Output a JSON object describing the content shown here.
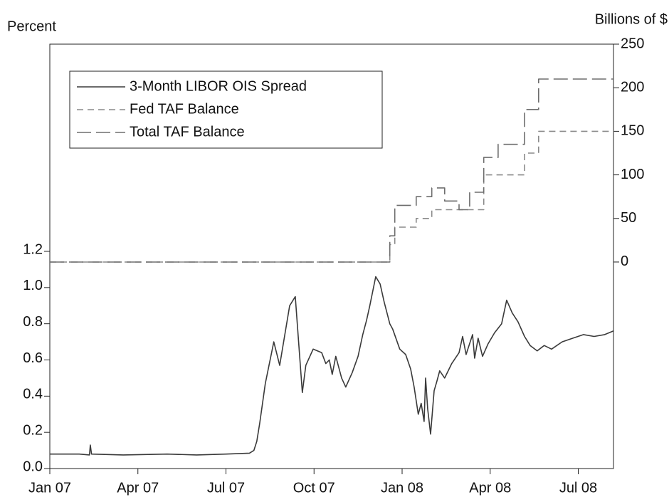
{
  "chart_data": {
    "type": "line",
    "y_label": "Percent",
    "y2_label": "Billions of $",
    "xlim": [
      0,
      19.2
    ],
    "xticks": [
      {
        "value": 0,
        "label": "Jan 07"
      },
      {
        "value": 3,
        "label": "Apr 07"
      },
      {
        "value": 6,
        "label": "Jul 07"
      },
      {
        "value": 9,
        "label": "Oct 07"
      },
      {
        "value": 12,
        "label": "Jan 08"
      },
      {
        "value": 15,
        "label": "Apr 08"
      },
      {
        "value": 18,
        "label": "Jul 08"
      }
    ],
    "ylim": [
      0,
      2.345
    ],
    "yticks": [
      {
        "value": 0,
        "label": "0.0"
      },
      0.2,
      0.4,
      0.6,
      0.8,
      {
        "value": 1,
        "label": "1.0"
      },
      1.2
    ],
    "y2lim": [
      -237,
      250
    ],
    "y2ticks": [
      0,
      50,
      100,
      150,
      200,
      250
    ],
    "legend": "top-left",
    "series": [
      {
        "name": "3-Month LIBOR OIS Spread",
        "color": "#3a3a3a",
        "dash": "solid",
        "x": [
          0,
          1.0,
          1.35,
          1.38,
          1.42,
          2.5,
          4,
          5,
          6,
          6.8,
          6.95,
          7.05,
          7.15,
          7.34,
          7.63,
          7.83,
          8.17,
          8.36,
          8.6,
          8.72,
          8.97,
          9.26,
          9.4,
          9.52,
          9.62,
          9.74,
          9.94,
          10.08,
          10.3,
          10.5,
          10.66,
          10.79,
          10.9,
          11.1,
          11.25,
          11.39,
          11.58,
          11.68,
          11.92,
          12.12,
          12.29,
          12.41,
          12.55,
          12.65,
          12.75,
          12.8,
          12.87,
          12.97,
          13.09,
          13.18,
          13.28,
          13.45,
          13.69,
          13.94,
          14.06,
          14.18,
          14.4,
          14.47,
          14.59,
          14.74,
          14.93,
          15.15,
          15.39,
          15.56,
          15.75,
          15.95,
          16.17,
          16.36,
          16.6,
          16.84,
          17.09,
          17.45,
          17.81,
          18.18,
          18.54,
          18.9,
          19.2
        ],
        "values": [
          0.08,
          0.08,
          0.075,
          0.13,
          0.08,
          0.075,
          0.08,
          0.075,
          0.08,
          0.085,
          0.1,
          0.15,
          0.25,
          0.47,
          0.7,
          0.57,
          0.9,
          0.95,
          0.42,
          0.57,
          0.66,
          0.64,
          0.58,
          0.6,
          0.52,
          0.62,
          0.5,
          0.45,
          0.53,
          0.62,
          0.74,
          0.82,
          0.9,
          1.06,
          1.02,
          0.92,
          0.8,
          0.77,
          0.66,
          0.63,
          0.55,
          0.45,
          0.3,
          0.36,
          0.26,
          0.5,
          0.33,
          0.19,
          0.43,
          0.48,
          0.54,
          0.5,
          0.58,
          0.64,
          0.73,
          0.63,
          0.74,
          0.61,
          0.72,
          0.62,
          0.69,
          0.75,
          0.8,
          0.93,
          0.86,
          0.81,
          0.73,
          0.68,
          0.65,
          0.68,
          0.66,
          0.7,
          0.72,
          0.74,
          0.73,
          0.74,
          0.76
        ]
      },
      {
        "name": "Fed TAF Balance",
        "color": "#8a8a8a",
        "dash": "short",
        "axis": "y2",
        "x": [
          0,
          11.58,
          11.58,
          11.75,
          11.75,
          12.48,
          12.48,
          13.01,
          13.01,
          14.78,
          14.78,
          16.17,
          16.17,
          16.65,
          16.65,
          19.2
        ],
        "values": [
          0,
          0,
          20,
          20,
          40,
          40,
          50,
          50,
          60,
          60,
          100,
          100,
          125,
          125,
          150,
          150
        ]
      },
      {
        "name": "Total TAF Balance",
        "color": "#6e6e6e",
        "dash": "long",
        "axis": "y2",
        "x": [
          0,
          11.58,
          11.58,
          11.75,
          11.75,
          12.48,
          12.48,
          13.01,
          13.01,
          13.45,
          13.45,
          13.94,
          13.94,
          14.3,
          14.3,
          14.78,
          14.78,
          15.27,
          15.27,
          16.17,
          16.17,
          16.65,
          16.65,
          19.2
        ],
        "values": [
          0,
          0,
          30,
          30,
          65,
          65,
          75,
          75,
          85,
          85,
          70,
          70,
          60,
          60,
          80,
          80,
          120,
          120,
          135,
          135,
          175,
          175,
          210,
          210
        ]
      }
    ]
  }
}
